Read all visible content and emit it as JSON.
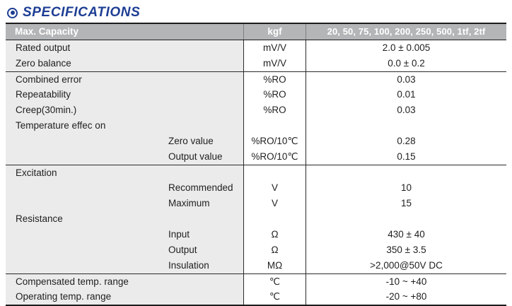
{
  "page": {
    "title": "SPECIFICATIONS",
    "title_icon": "bullseye-icon",
    "title_color": "#1d3e93",
    "header_bg_color": "#b3b5b7",
    "param_column_bg_color": "#ebebeb"
  },
  "table": {
    "header": {
      "parameter": "Max. Capacity",
      "unit": "kgf",
      "value": "20, 50, 75, 100, 200, 250, 500, 1tf, 2tf"
    },
    "groups": [
      {
        "rows": [
          {
            "parameter": "Rated output",
            "indent": false,
            "unit": "mV/V",
            "value": "2.0 ± 0.005"
          },
          {
            "parameter": "Zero balance",
            "indent": false,
            "unit": "mV/V",
            "value": "0.0 ± 0.2"
          }
        ]
      },
      {
        "rows": [
          {
            "parameter": "Combined error",
            "indent": false,
            "unit": "%RO",
            "value": "0.03"
          },
          {
            "parameter": "Repeatability",
            "indent": false,
            "unit": "%RO",
            "value": "0.01"
          },
          {
            "parameter": "Creep(30min.)",
            "indent": false,
            "unit": "%RO",
            "value": "0.03"
          },
          {
            "parameter": "Temperature effec on",
            "indent": false,
            "unit": "",
            "value": ""
          },
          {
            "parameter": "Zero value",
            "indent": true,
            "unit": "%RO/10℃",
            "value": "0.28"
          },
          {
            "parameter": "Output value",
            "indent": true,
            "unit": "%RO/10℃",
            "value": "0.15"
          }
        ]
      },
      {
        "rows": [
          {
            "parameter": "Excitation",
            "indent": false,
            "unit": "",
            "value": ""
          },
          {
            "parameter": "Recommended",
            "indent": true,
            "unit": "V",
            "value": "10"
          },
          {
            "parameter": "Maximum",
            "indent": true,
            "unit": "V",
            "value": "15"
          },
          {
            "parameter": "Resistance",
            "indent": false,
            "unit": "",
            "value": ""
          },
          {
            "parameter": "Input",
            "indent": true,
            "unit": "Ω",
            "value": "430 ± 40"
          },
          {
            "parameter": "Output",
            "indent": true,
            "unit": "Ω",
            "value": "350 ± 3.5"
          },
          {
            "parameter": "Insulation",
            "indent": true,
            "unit": "MΩ",
            "value": ">2,000@50V DC"
          }
        ]
      },
      {
        "rows": [
          {
            "parameter": "Compensated temp. range",
            "indent": false,
            "unit": "℃",
            "value": "-10 ~ +40"
          },
          {
            "parameter": "Operating temp. range",
            "indent": false,
            "unit": "℃",
            "value": "-20 ~ +80"
          }
        ]
      }
    ]
  }
}
